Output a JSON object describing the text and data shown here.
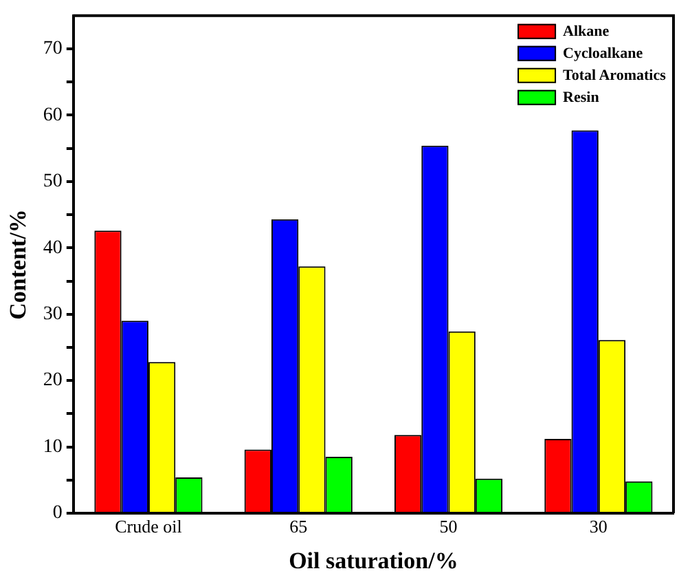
{
  "chart_data": {
    "type": "bar",
    "xlabel": "Oil saturation/%",
    "ylabel": "Content/%",
    "categories": [
      "Crude oil",
      "65",
      "50",
      "30"
    ],
    "series": [
      {
        "name": "Alkane",
        "color": "#ff0000",
        "values": [
          42.6,
          9.6,
          11.8,
          11.2
        ]
      },
      {
        "name": "Cycloalkane",
        "color": "#0000ff",
        "values": [
          29.0,
          44.3,
          55.4,
          57.7
        ]
      },
      {
        "name": "Total Aromatics",
        "color": "#ffff00",
        "values": [
          22.8,
          37.2,
          27.4,
          26.1
        ]
      },
      {
        "name": "Resin",
        "color": "#00ff00",
        "values": [
          5.4,
          8.5,
          5.2,
          4.8
        ]
      }
    ],
    "ylim": [
      0,
      75
    ],
    "yticks": [
      0,
      {
        "value": 5,
        "label": null
      },
      10,
      {
        "value": 15,
        "label": null
      },
      20,
      {
        "value": 25,
        "label": null
      },
      30,
      {
        "value": 35,
        "label": null
      },
      40,
      {
        "value": 45,
        "label": null
      },
      50,
      {
        "value": 55,
        "label": null
      },
      60,
      {
        "value": 65,
        "label": null
      },
      70
    ],
    "grid": false,
    "legend": "top right"
  }
}
